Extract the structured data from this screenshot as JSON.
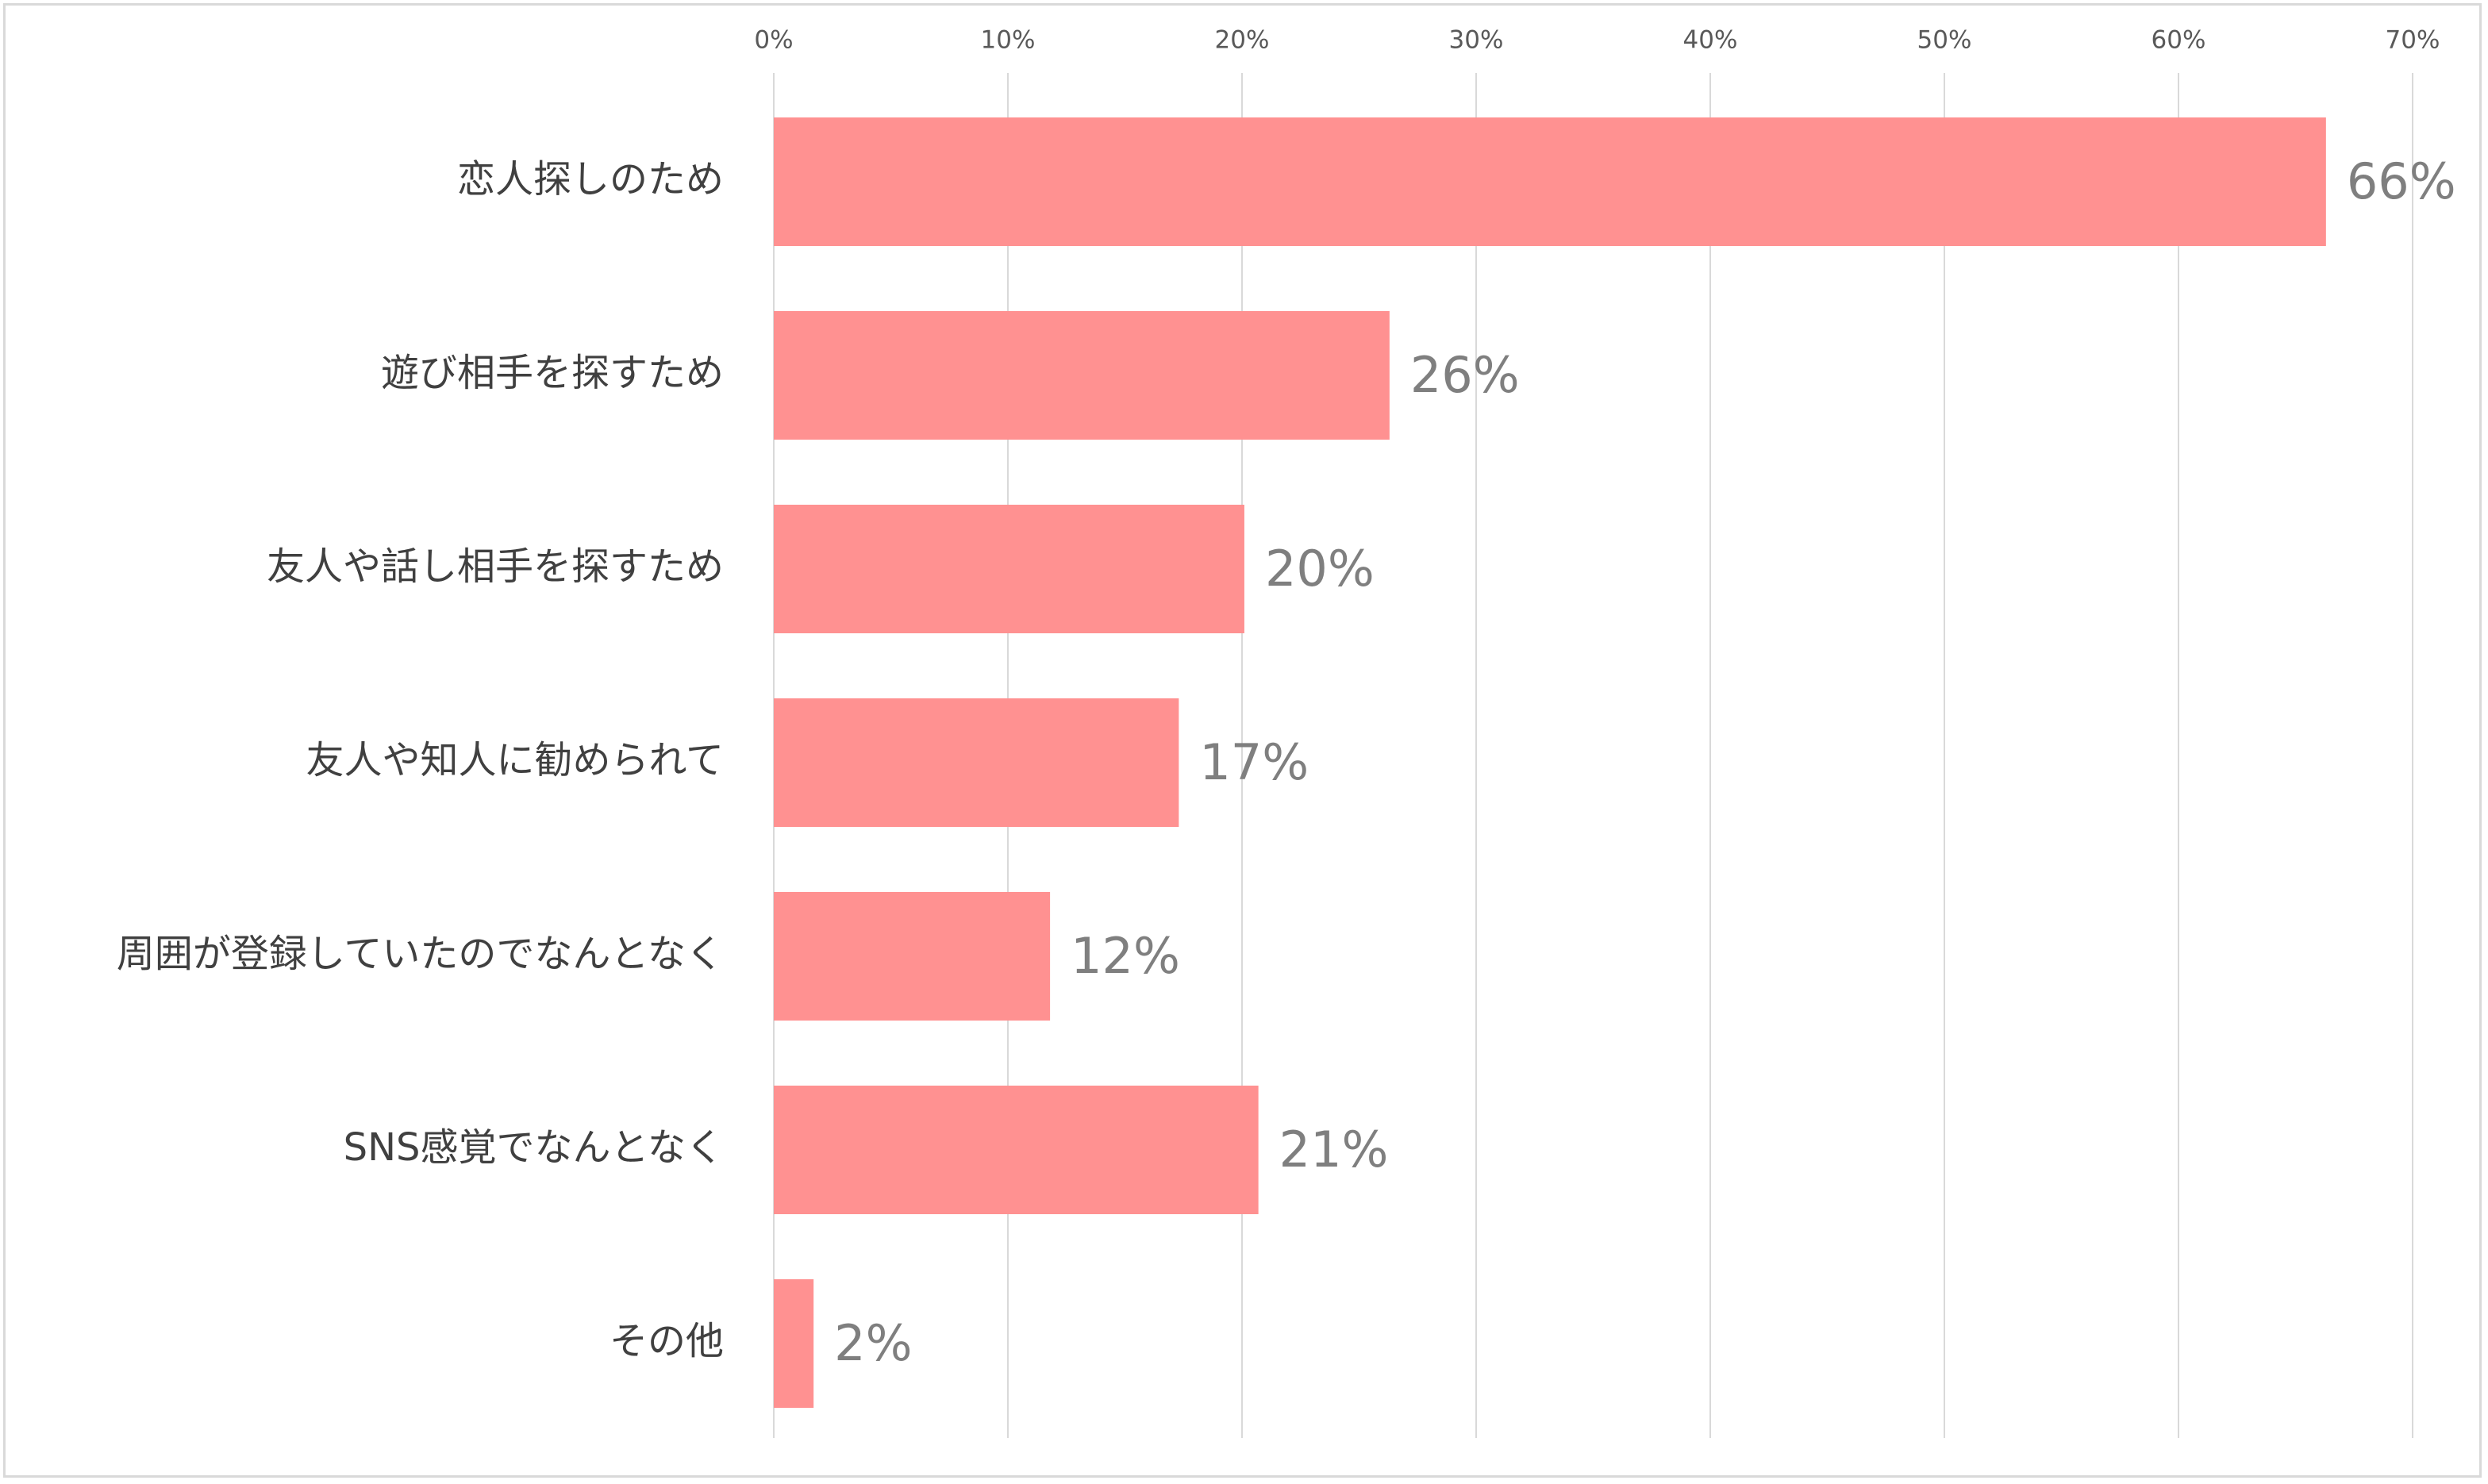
{
  "chart_data": {
    "type": "bar",
    "orientation": "horizontal",
    "categories": [
      "恋人探しのため",
      "遊び相手を探すため",
      "友人や話し相手を探すため",
      "友人や知人に勧められて",
      "周囲が登録していたのでなんとなく",
      "SNS感覚でなんとなく",
      "その他"
    ],
    "values": [
      66.3,
      26.3,
      20.1,
      17.3,
      11.8,
      20.7,
      1.7
    ],
    "value_labels": [
      "66%",
      "26%",
      "20%",
      "17%",
      "12%",
      "21%",
      "2%"
    ],
    "x_ticks": [
      0,
      10,
      20,
      30,
      40,
      50,
      60,
      70
    ],
    "x_tick_labels": [
      "0%",
      "10%",
      "20%",
      "30%",
      "40%",
      "50%",
      "60%",
      "70%"
    ],
    "xlim": [
      0,
      70
    ],
    "x_axis_position": "top",
    "grid": "vertical",
    "title": "",
    "xlabel": "",
    "ylabel": "",
    "colors": {
      "bar": "#ff9191",
      "grid": "#d9d9d9",
      "category_text": "#404040",
      "tick_text": "#595959",
      "value_text": "#7f7f7f"
    }
  }
}
